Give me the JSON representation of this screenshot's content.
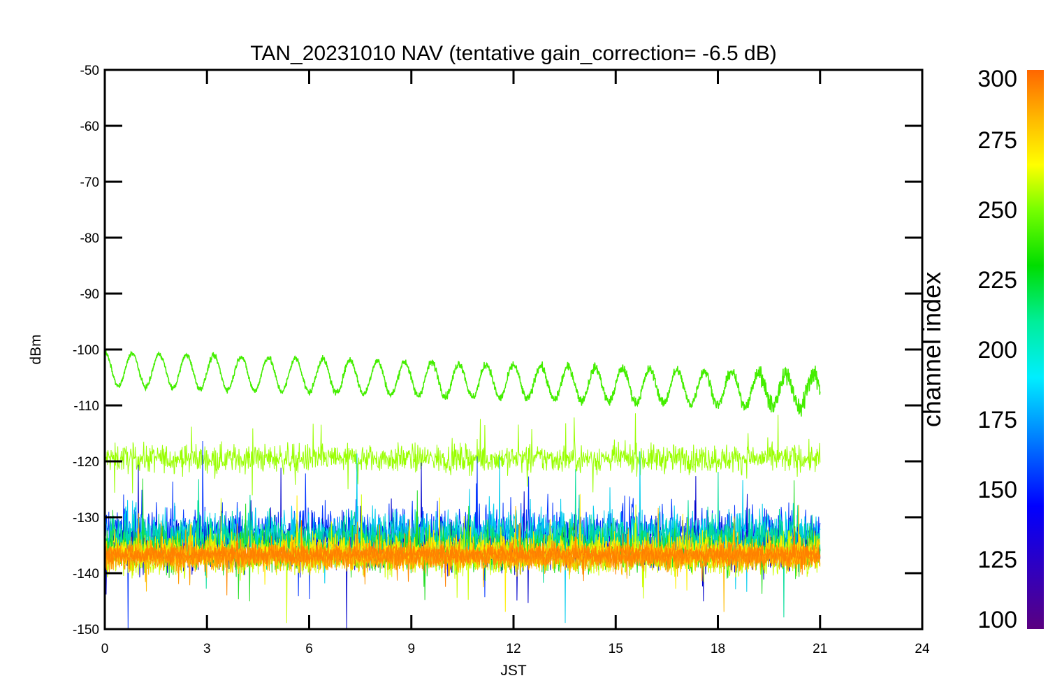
{
  "chart_data": {
    "type": "line",
    "title": "TAN_20231010 NAV (tentative gain_correction= -6.5 dB)",
    "xlabel": "JST",
    "ylabel": "dBm",
    "xlim": [
      0,
      24
    ],
    "ylim": [
      -150,
      -50
    ],
    "xticks": [
      "0",
      "3",
      "6",
      "9",
      "12",
      "15",
      "18",
      "21",
      "24"
    ],
    "yticks": [
      "-50",
      "-60",
      "-70",
      "-80",
      "-90",
      "-100",
      "-110",
      "-120",
      "-130",
      "-140",
      "-150"
    ],
    "data_x_range": [
      0,
      21
    ],
    "grid": false,
    "colorbar": {
      "label": "channel index",
      "range": [
        100,
        300
      ],
      "ticks": [
        "100",
        "125",
        "150",
        "175",
        "200",
        "225",
        "250",
        "275",
        "300"
      ],
      "colormap": "rainbow"
    },
    "series": [
      {
        "channel": 240,
        "color": "#44ee00",
        "pattern": "oscillating",
        "start": -100,
        "mean_start": -103.5,
        "mean_end": -107.5,
        "amplitude": 3,
        "period_hours": 0.8,
        "noise": 0.4
      },
      {
        "channel": 258,
        "color": "#99ff00",
        "pattern": "noise-band",
        "mean": -119.5,
        "spread": 4.5
      },
      {
        "channel": 150,
        "color": "#0033ff",
        "pattern": "noise-band",
        "mean": -133,
        "spread": 9
      },
      {
        "channel": 140,
        "color": "#0000cc",
        "pattern": "noise-band",
        "mean": -135,
        "spread": 8
      },
      {
        "channel": 175,
        "color": "#00ccee",
        "pattern": "noise-band",
        "mean": -133,
        "spread": 8
      },
      {
        "channel": 200,
        "color": "#00dd99",
        "pattern": "noise-band",
        "mean": -134,
        "spread": 7
      },
      {
        "channel": 225,
        "color": "#22dd22",
        "pattern": "noise-band",
        "mean": -136,
        "spread": 7
      },
      {
        "channel": 265,
        "color": "#ccff00",
        "pattern": "noise-band",
        "mean": -137,
        "spread": 6
      },
      {
        "channel": 275,
        "color": "#ffee00",
        "pattern": "noise-band",
        "mean": -136,
        "spread": 5.5
      },
      {
        "channel": 285,
        "color": "#ffbb00",
        "pattern": "noise-band",
        "mean": -137,
        "spread": 5
      },
      {
        "channel": 292,
        "color": "#ff9900",
        "pattern": "noise-band",
        "mean": -137,
        "spread": 4
      },
      {
        "channel": 298,
        "color": "#ff8800",
        "pattern": "noise-band",
        "mean": -137,
        "spread": 3.5
      },
      {
        "channel": 300,
        "color": "#ff8000",
        "pattern": "noise-band",
        "mean": -136.5,
        "spread": 3
      }
    ]
  }
}
